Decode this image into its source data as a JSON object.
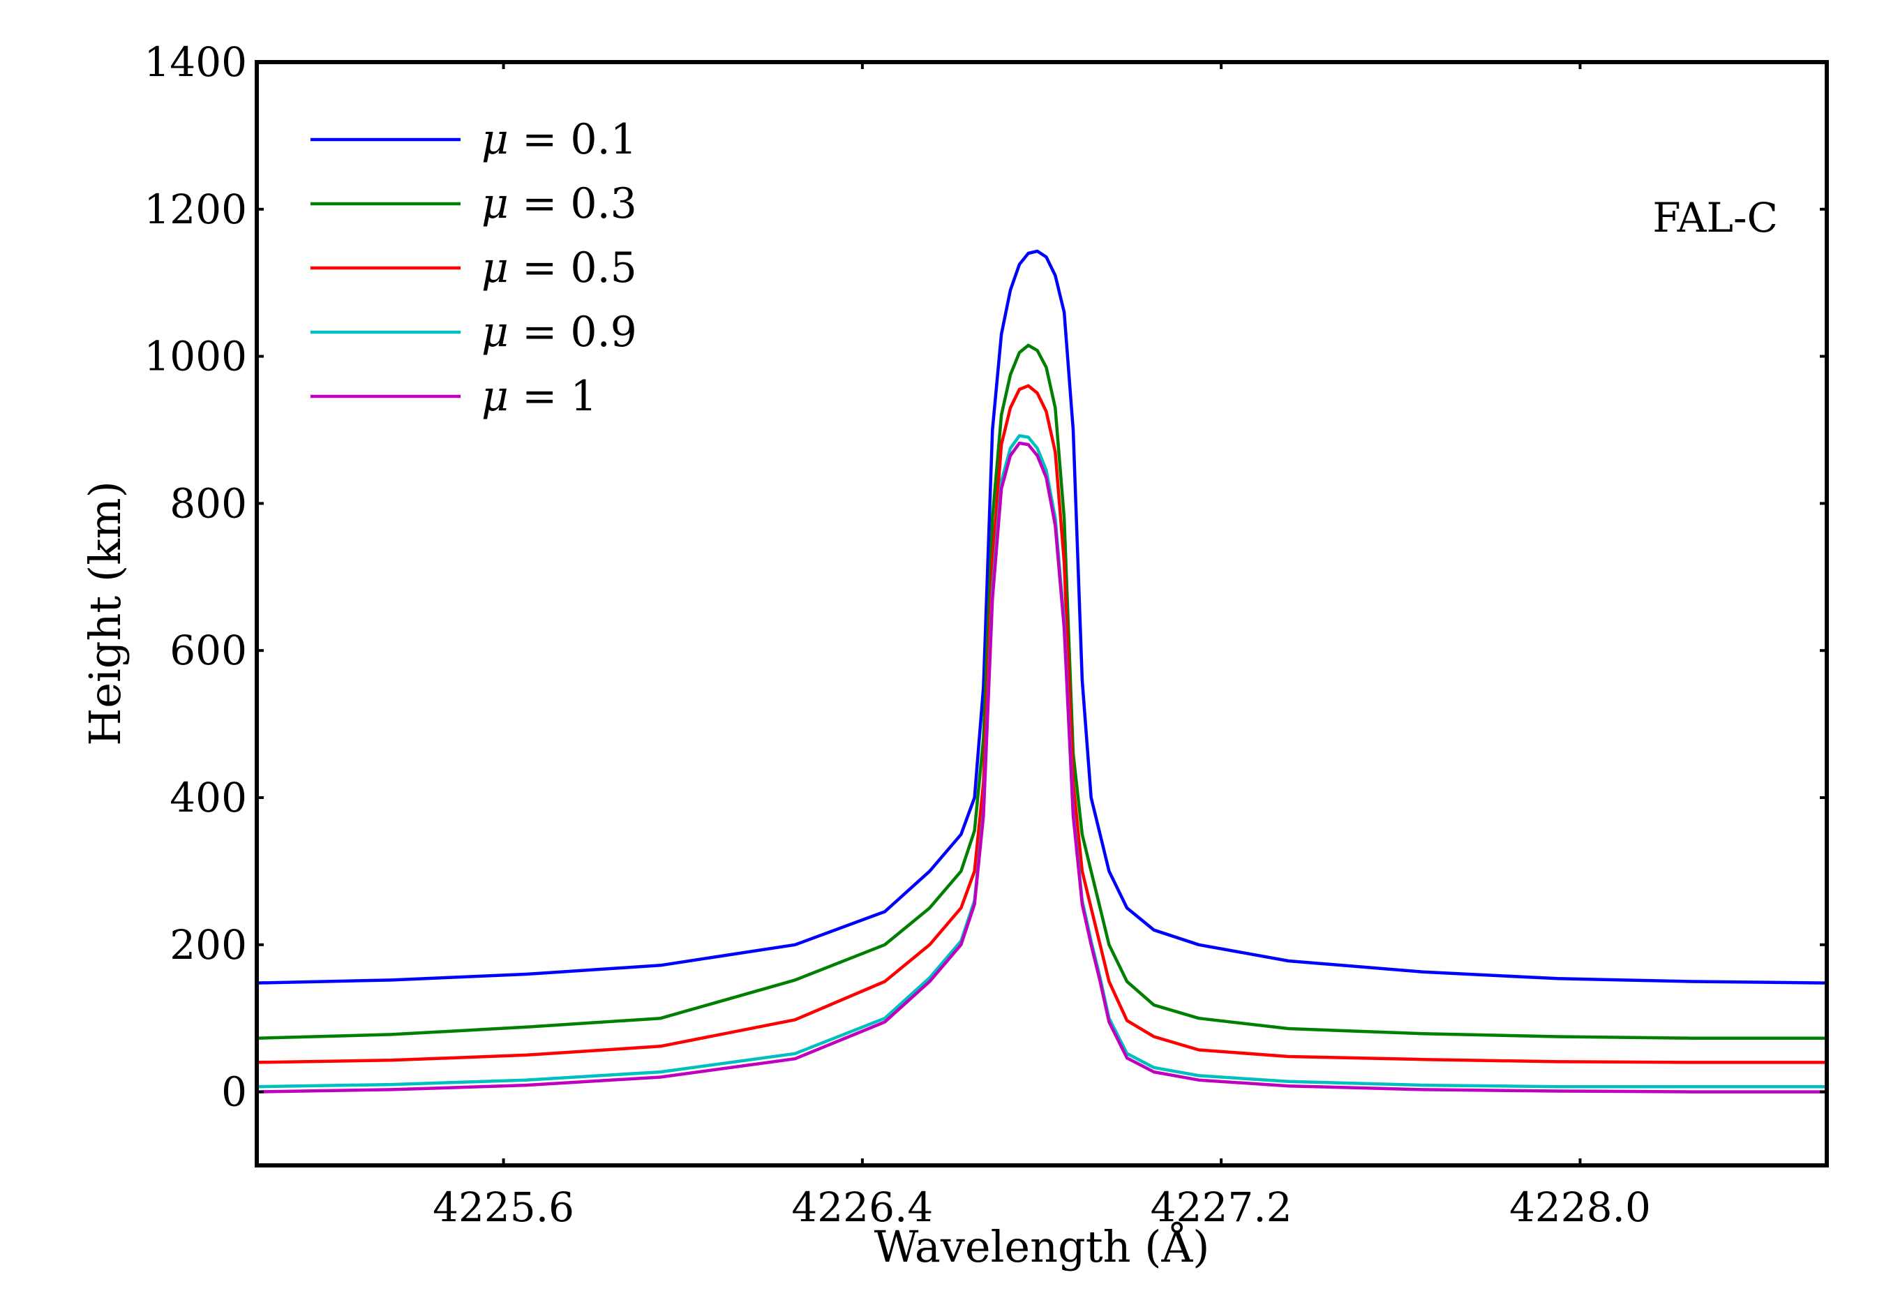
{
  "chart_data": {
    "type": "line",
    "title": "",
    "xlabel": "Wavelength (Å)",
    "ylabel": "Height (km)",
    "xlim": [
      4225.05,
      4228.55
    ],
    "ylim": [
      -100,
      1400
    ],
    "xticks": [
      4225.6,
      4226.4,
      4227.2,
      4228.0
    ],
    "xtick_labels": [
      "4225.6",
      "4226.4",
      "4227.2",
      "4228.0"
    ],
    "yticks": [
      0,
      200,
      400,
      600,
      800,
      1000,
      1200,
      1400
    ],
    "ytick_labels": [
      "0",
      "200",
      "400",
      "600",
      "800",
      "1000",
      "1200",
      "1400"
    ],
    "grid": false,
    "legend_position": "top-left",
    "annotation": "FAL-C",
    "x": [
      4225.05,
      4225.35,
      4225.65,
      4225.95,
      4226.25,
      4226.45,
      4226.55,
      4226.62,
      4226.65,
      4226.67,
      4226.69,
      4226.71,
      4226.73,
      4226.75,
      4226.77,
      4226.79,
      4226.81,
      4226.83,
      4226.85,
      4226.87,
      4226.89,
      4226.91,
      4226.93,
      4226.95,
      4226.99,
      4227.05,
      4227.15,
      4227.35,
      4227.65,
      4227.95,
      4228.25,
      4228.55
    ],
    "series": [
      {
        "name": "μ = 0.1",
        "legend_symbol": "μ",
        "legend_text": " = 0.1",
        "color": "#0000ff",
        "values": [
          148,
          152,
          160,
          172,
          200,
          245,
          300,
          350,
          400,
          550,
          900,
          1030,
          1090,
          1125,
          1140,
          1143,
          1135,
          1110,
          1060,
          900,
          560,
          400,
          350,
          300,
          250,
          220,
          200,
          178,
          163,
          154,
          150,
          148
        ]
      },
      {
        "name": "μ = 0.3",
        "legend_symbol": "μ",
        "legend_text": " = 0.3",
        "color": "#007f00",
        "values": [
          73,
          78,
          88,
          100,
          152,
          200,
          250,
          300,
          355,
          480,
          780,
          920,
          975,
          1005,
          1015,
          1008,
          985,
          930,
          780,
          460,
          350,
          300,
          250,
          200,
          150,
          118,
          100,
          86,
          79,
          75,
          73,
          73
        ]
      },
      {
        "name": "μ = 0.5",
        "legend_symbol": "μ",
        "legend_text": " = 0.5",
        "color": "#ff0000",
        "values": [
          40,
          43,
          50,
          62,
          98,
          150,
          200,
          250,
          300,
          420,
          720,
          880,
          930,
          955,
          960,
          950,
          925,
          870,
          720,
          420,
          300,
          250,
          200,
          150,
          97,
          75,
          57,
          48,
          44,
          41,
          40,
          40
        ]
      },
      {
        "name": "μ = 0.9",
        "legend_symbol": "μ",
        "legend_text": " = 0.9",
        "color": "#00bfbf",
        "values": [
          7,
          10,
          16,
          27,
          52,
          100,
          155,
          205,
          260,
          380,
          680,
          830,
          875,
          892,
          890,
          875,
          845,
          780,
          640,
          380,
          260,
          205,
          155,
          100,
          52,
          33,
          22,
          14,
          9,
          7,
          7,
          7
        ]
      },
      {
        "name": "μ = 1",
        "legend_symbol": "μ",
        "legend_text": " = 1",
        "color": "#bf00bf",
        "values": [
          0,
          3,
          9,
          20,
          45,
          95,
          150,
          200,
          255,
          375,
          670,
          820,
          865,
          882,
          880,
          865,
          835,
          770,
          630,
          375,
          255,
          200,
          150,
          95,
          46,
          27,
          16,
          8,
          3,
          1,
          0,
          0
        ]
      }
    ]
  }
}
